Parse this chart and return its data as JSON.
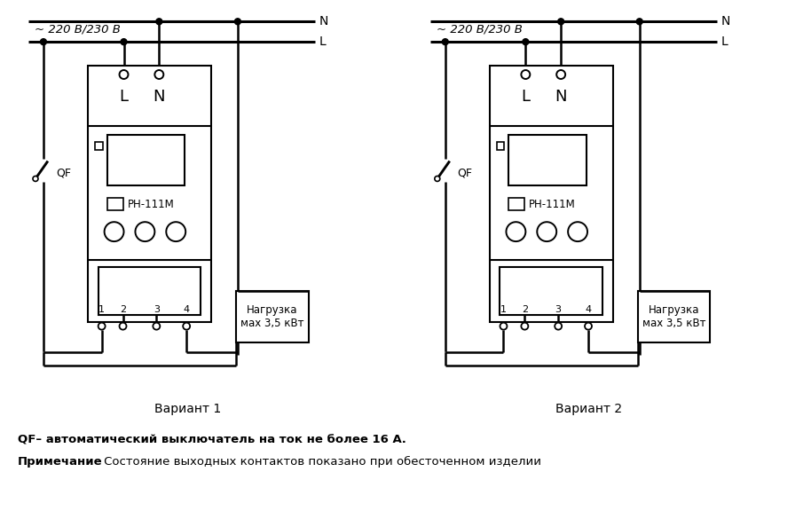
{
  "background_color": "#ffffff",
  "variant1_label": "Вариант 1",
  "variant2_label": "Вариант 2",
  "note1": "QF– автоматический выключатель на ток не более 16 А.",
  "note2_bold": "Примечание",
  "note2_rest": " – Состояние выходных контактов показано при обесточенном изделии",
  "voltage_label": "~ 220 В/230 В",
  "device_label": "РН-111М",
  "load_label": "Нагрузка\nмах 3,5 кВт",
  "N_label": "N",
  "L_label": "L",
  "QF_label": "QF",
  "L_term": "L",
  "N_term": "N"
}
